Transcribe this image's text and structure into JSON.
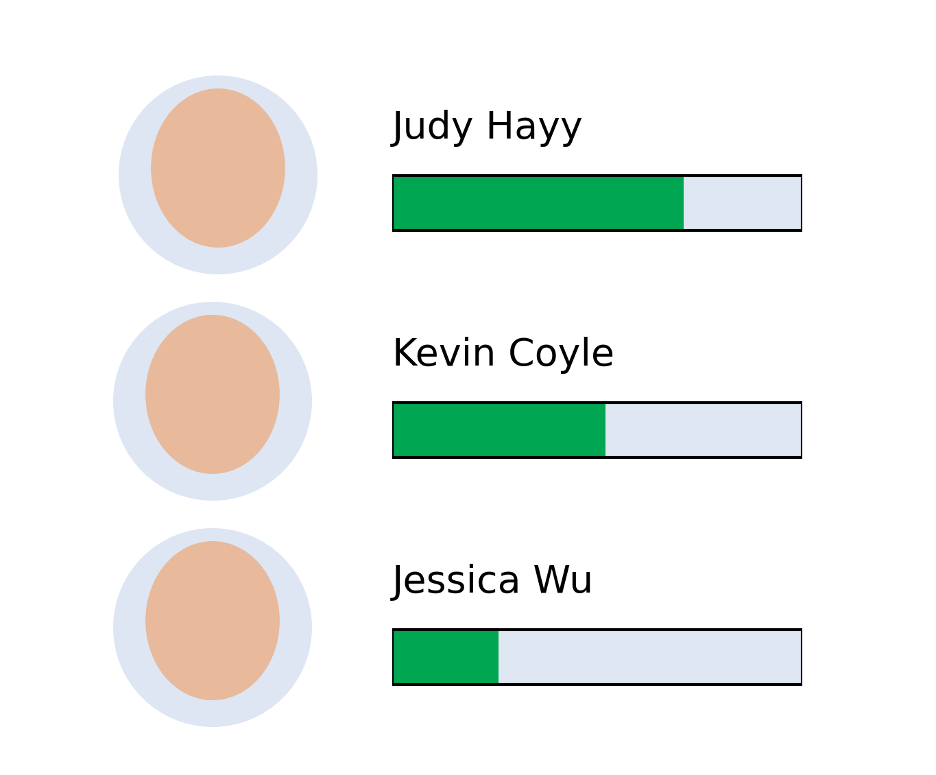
{
  "chart_data": {
    "type": "bar",
    "orientation": "horizontal",
    "categories": [
      "Judy Hayy",
      "Kevin Coyle",
      "Jessica Wu"
    ],
    "values": [
      71,
      52,
      26
    ],
    "color": "#00a651",
    "xlim": [
      0,
      100
    ],
    "tick_labels": false,
    "grid": false
  }
}
